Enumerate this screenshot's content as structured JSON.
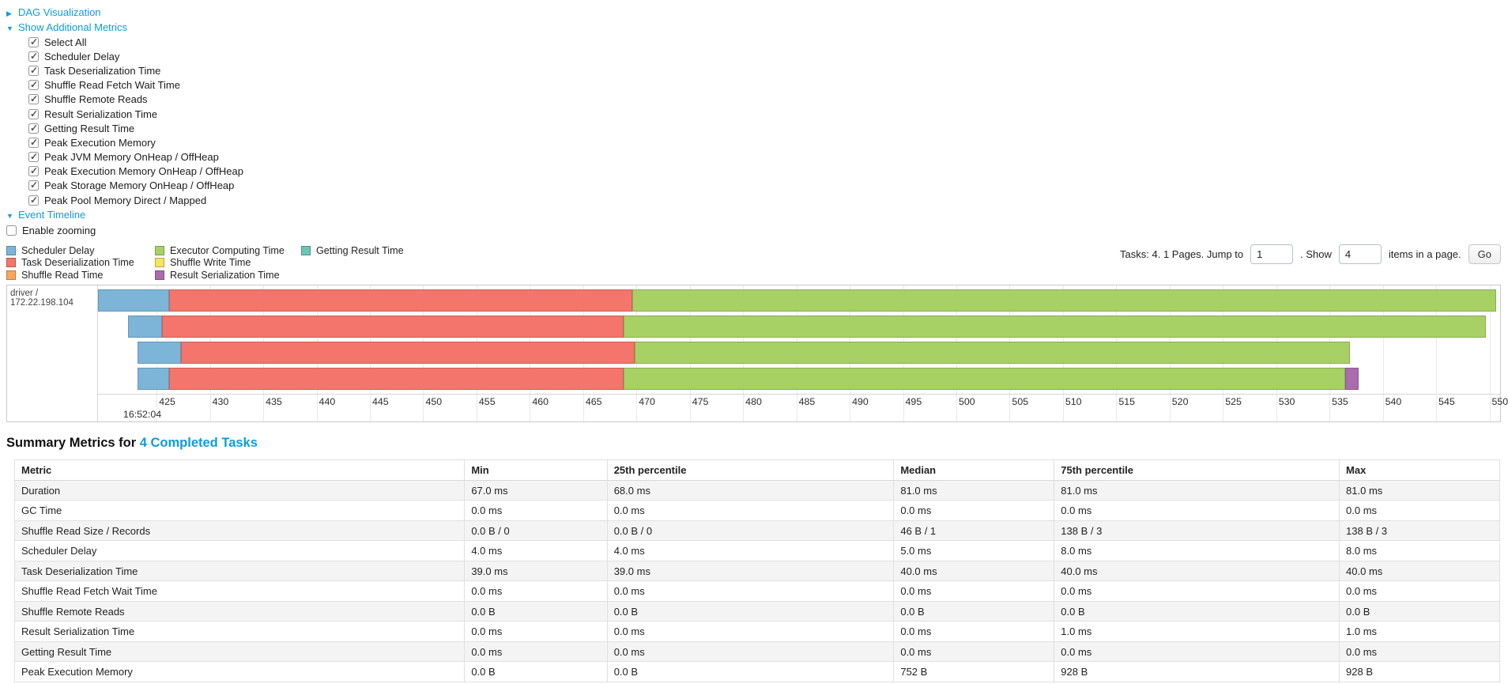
{
  "controls": {
    "arrow_collapsed": "▶",
    "arrow_expanded": "▼",
    "dag": {
      "label": "DAG Visualization"
    },
    "metrics_toggle": {
      "label": "Show Additional Metrics"
    },
    "metric_checkboxes": [
      {
        "label": "Select All",
        "checked": true
      },
      {
        "label": "Scheduler Delay",
        "checked": true
      },
      {
        "label": "Task Deserialization Time",
        "checked": true
      },
      {
        "label": "Shuffle Read Fetch Wait Time",
        "checked": true
      },
      {
        "label": "Shuffle Remote Reads",
        "checked": true
      },
      {
        "label": "Result Serialization Time",
        "checked": true
      },
      {
        "label": "Getting Result Time",
        "checked": true
      },
      {
        "label": "Peak Execution Memory",
        "checked": true
      },
      {
        "label": "Peak JVM Memory OnHeap / OffHeap",
        "checked": true
      },
      {
        "label": "Peak Execution Memory OnHeap / OffHeap",
        "checked": true
      },
      {
        "label": "Peak Storage Memory OnHeap / OffHeap",
        "checked": true
      },
      {
        "label": "Peak Pool Memory Direct / Mapped",
        "checked": true
      }
    ],
    "event_timeline": {
      "label": "Event Timeline"
    },
    "enable_zooming": {
      "label": "Enable zooming",
      "checked": false
    }
  },
  "pagination": {
    "summary_text": "Tasks: 4. 1 Pages. Jump to",
    "jump_value": "1",
    "show_label": ". Show",
    "show_value": "4",
    "suffix_text": "items in a page.",
    "go_label": "Go"
  },
  "chart_data": {
    "type": "timeline",
    "group_label": "driver / 172.22.198.104",
    "axis": {
      "min": 419.5,
      "max": 551,
      "ticks": [
        425,
        430,
        435,
        440,
        445,
        450,
        455,
        460,
        465,
        470,
        475,
        480,
        485,
        490,
        495,
        500,
        505,
        510,
        515,
        520,
        525,
        530,
        535,
        540,
        545,
        550
      ],
      "second_label": "16:52:04",
      "unit": "ms"
    },
    "colors": {
      "scheduler_delay": "#7cb5d8",
      "task_deserialization": "#f4756b",
      "shuffle_read": "#f9a65c",
      "executor_computing": "#a7d165",
      "shuffle_write": "#f3e55c",
      "result_serialization": "#ac6bac",
      "getting_result": "#6dc5b8"
    },
    "legend_columns": [
      [
        {
          "key": "scheduler_delay",
          "label": "Scheduler Delay"
        },
        {
          "key": "task_deserialization",
          "label": "Task Deserialization Time"
        },
        {
          "key": "shuffle_read",
          "label": "Shuffle Read Time"
        }
      ],
      [
        {
          "key": "executor_computing",
          "label": "Executor Computing Time"
        },
        {
          "key": "shuffle_write",
          "label": "Shuffle Write Time"
        },
        {
          "key": "result_serialization",
          "label": "Result Serialization Time"
        }
      ],
      [
        {
          "key": "getting_result",
          "label": "Getting Result Time"
        }
      ]
    ],
    "rows": [
      {
        "segments": [
          {
            "key": "scheduler_delay",
            "start": 419.5,
            "end": 426.2
          },
          {
            "key": "task_deserialization",
            "start": 426.2,
            "end": 469.6
          },
          {
            "key": "executor_computing",
            "start": 469.6,
            "end": 550.6
          }
        ]
      },
      {
        "segments": [
          {
            "key": "scheduler_delay",
            "start": 422.3,
            "end": 425.5
          },
          {
            "key": "task_deserialization",
            "start": 425.5,
            "end": 468.8
          },
          {
            "key": "executor_computing",
            "start": 468.8,
            "end": 549.7
          }
        ]
      },
      {
        "segments": [
          {
            "key": "scheduler_delay",
            "start": 423.2,
            "end": 427.3
          },
          {
            "key": "task_deserialization",
            "start": 427.3,
            "end": 469.8
          },
          {
            "key": "executor_computing",
            "start": 469.8,
            "end": 536.9
          }
        ]
      },
      {
        "segments": [
          {
            "key": "scheduler_delay",
            "start": 423.2,
            "end": 426.2
          },
          {
            "key": "task_deserialization",
            "start": 426.2,
            "end": 468.8
          },
          {
            "key": "executor_computing",
            "start": 468.8,
            "end": 536.5
          },
          {
            "key": "result_serialization",
            "start": 536.5,
            "end": 537.7
          }
        ]
      }
    ]
  },
  "summary": {
    "title_prefix": "Summary Metrics for",
    "title_link": "4 Completed Tasks",
    "table": {
      "headers": [
        "Metric",
        "Min",
        "25th percentile",
        "Median",
        "75th percentile",
        "Max"
      ],
      "rows": [
        {
          "metric": "Duration",
          "values": [
            "67.0 ms",
            "68.0 ms",
            "81.0 ms",
            "81.0 ms",
            "81.0 ms"
          ]
        },
        {
          "metric": "GC Time",
          "values": [
            "0.0 ms",
            "0.0 ms",
            "0.0 ms",
            "0.0 ms",
            "0.0 ms"
          ]
        },
        {
          "metric": "Shuffle Read Size / Records",
          "values": [
            "0.0 B / 0",
            "0.0 B / 0",
            "46 B / 1",
            "138 B / 3",
            "138 B / 3"
          ]
        },
        {
          "metric": "Scheduler Delay",
          "values": [
            "4.0 ms",
            "4.0 ms",
            "5.0 ms",
            "8.0 ms",
            "8.0 ms"
          ]
        },
        {
          "metric": "Task Deserialization Time",
          "values": [
            "39.0 ms",
            "39.0 ms",
            "40.0 ms",
            "40.0 ms",
            "40.0 ms"
          ]
        },
        {
          "metric": "Shuffle Read Fetch Wait Time",
          "values": [
            "0.0 ms",
            "0.0 ms",
            "0.0 ms",
            "0.0 ms",
            "0.0 ms"
          ]
        },
        {
          "metric": "Shuffle Remote Reads",
          "values": [
            "0.0 B",
            "0.0 B",
            "0.0 B",
            "0.0 B",
            "0.0 B"
          ]
        },
        {
          "metric": "Result Serialization Time",
          "values": [
            "0.0 ms",
            "0.0 ms",
            "0.0 ms",
            "1.0 ms",
            "1.0 ms"
          ]
        },
        {
          "metric": "Getting Result Time",
          "values": [
            "0.0 ms",
            "0.0 ms",
            "0.0 ms",
            "0.0 ms",
            "0.0 ms"
          ]
        },
        {
          "metric": "Peak Execution Memory",
          "values": [
            "0.0 B",
            "0.0 B",
            "752 B",
            "928 B",
            "928 B"
          ]
        }
      ]
    }
  }
}
